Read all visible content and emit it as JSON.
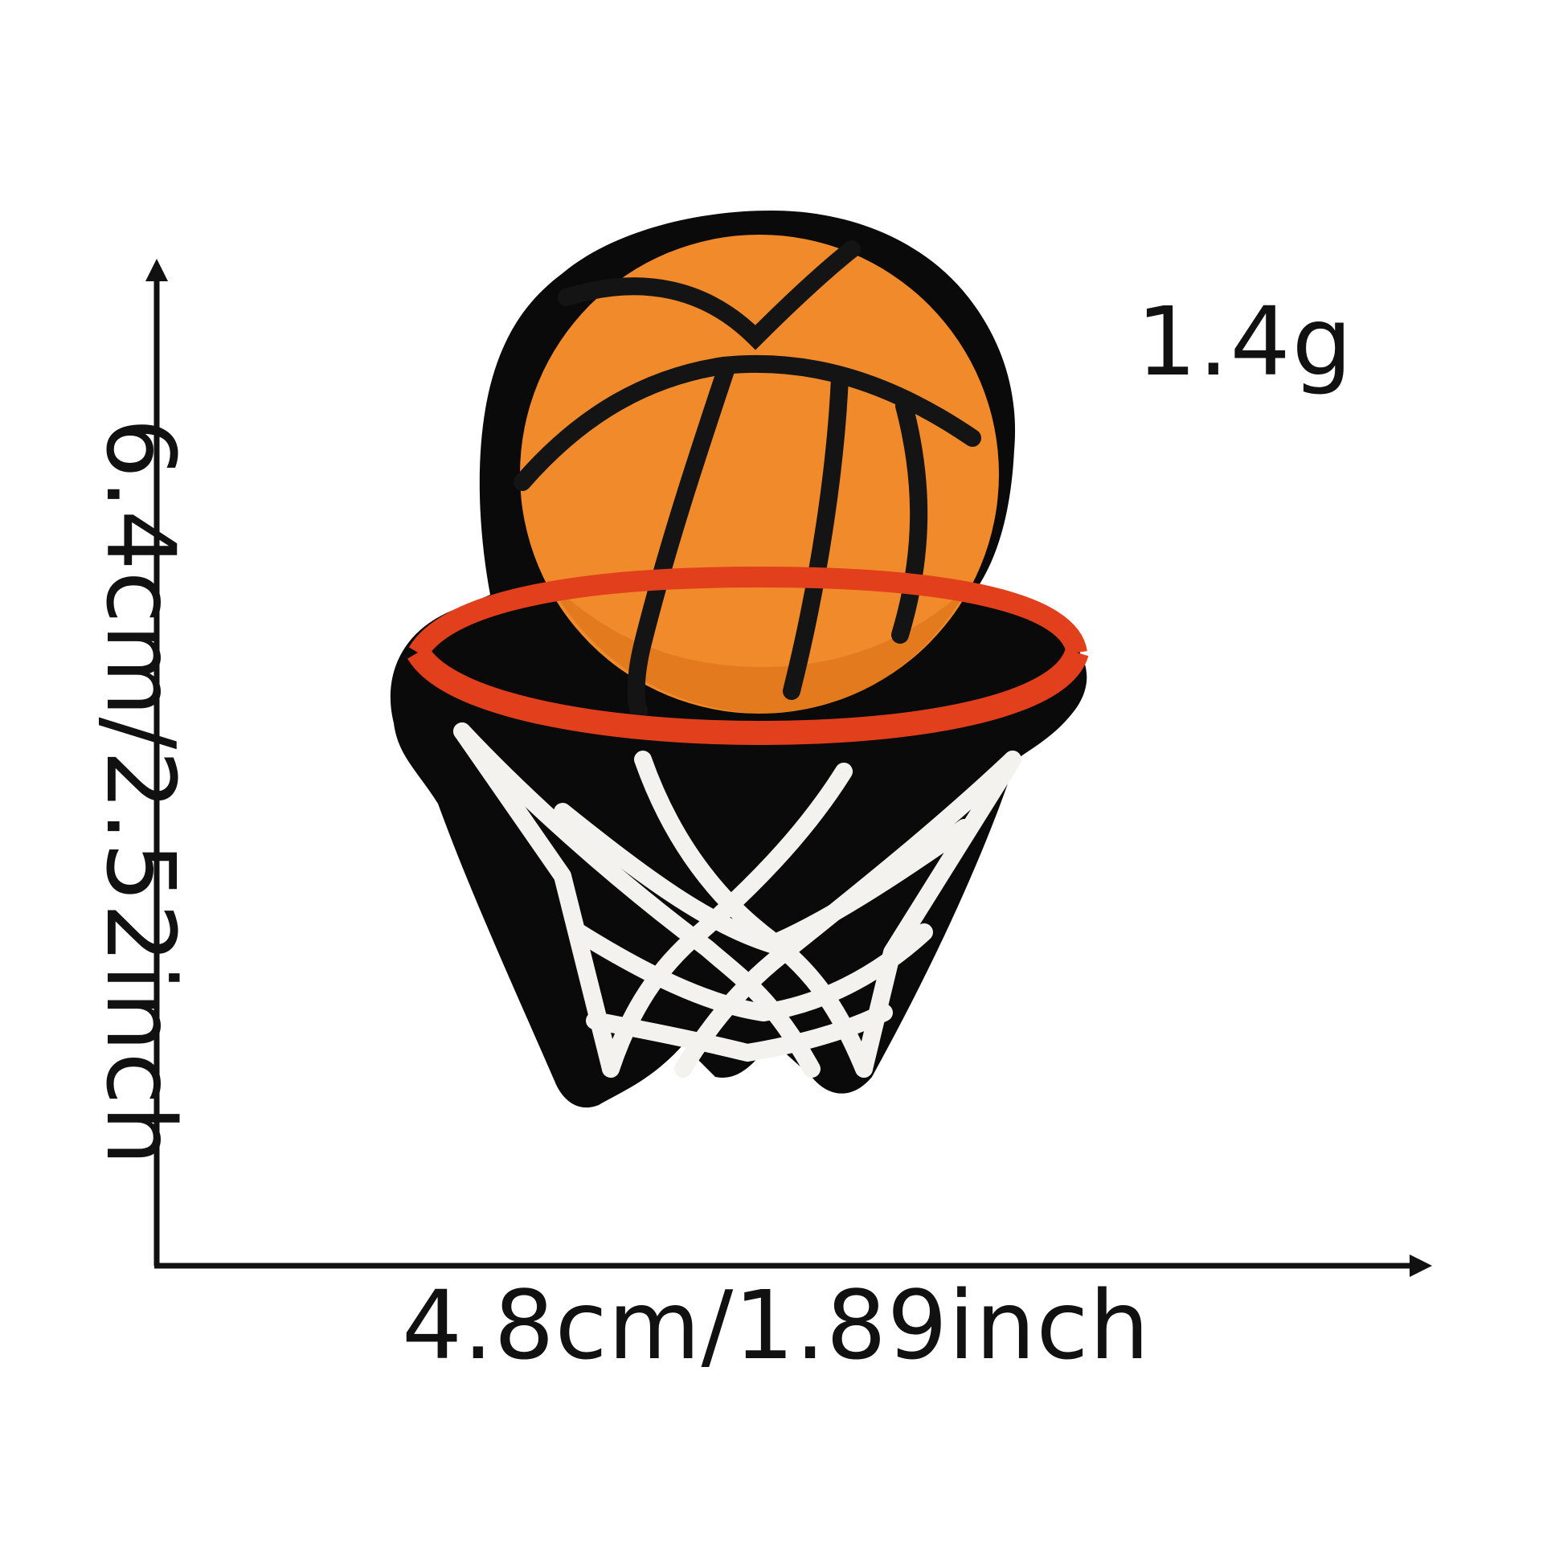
{
  "product": {
    "subject": "basketball-hoop-embroidered-patch",
    "colors": {
      "outline": "#0a0a0a",
      "ball": "#f08a2a",
      "ball_shadow": "#d96f14",
      "seams": "#141414",
      "rim": "#e2401d",
      "net": "#f4f2ee",
      "background": "#ffffff"
    }
  },
  "measurements": {
    "width_label": "4.8cm/1.89inch",
    "height_label": "6.4cm/2.52inch",
    "weight_label": "1.4g"
  },
  "icons": {
    "horizontal_arrow": "arrow-right-icon",
    "vertical_arrow": "arrow-up-icon"
  }
}
